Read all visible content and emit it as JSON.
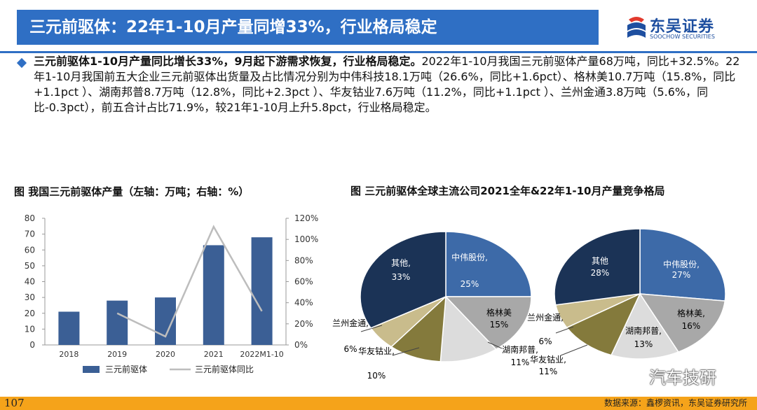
{
  "header": {
    "title": "三元前驱体：22年1-10月产量同增33%，行业格局稳定",
    "brand_name": "东吴证券",
    "brand_en": "SOOCHOW SECURITIES"
  },
  "summary": {
    "lead": "三元前驱体1-10月产量同比增长33%，9月起下游需求恢复，行业格局稳定。",
    "body": "2022年1-10月我国三元前驱体产量68万吨，同比+32.5%。22年1-10月我国前五大企业三元前驱体出货量及占比情况分别为中伟科技18.1万吨（26.6%，同比+1.6pct）、格林美10.7万吨（15.8%，同比+1.1pct ）、湖南邦普8.7万吨（12.8%，同比+2.3pct ）、华友钴业7.6万吨（11.2%，同比+1.1pct ）、兰州金通3.8万吨（5.6%，同比-0.3pct），前五合计占比71.9%，较21年1-10月上升5.8pct，行业格局稳定。"
  },
  "colors": {
    "title_bg": "#2f6fc4",
    "bar": "#3b5f95",
    "line": "#bdbdbd",
    "footer": "#f5a31a"
  },
  "chart_data": [
    {
      "type": "bar",
      "title": "图 我国三元前驱体产量（左轴：万吨；右轴：%）",
      "categories": [
        "2018",
        "2019",
        "2020",
        "2021",
        "2022M1-10"
      ],
      "series": [
        {
          "name": "三元前驱体",
          "type": "bar",
          "axis": "left",
          "values": [
            21,
            28,
            30,
            63,
            68
          ]
        },
        {
          "name": "三元前驱体同比",
          "type": "line",
          "axis": "right",
          "values": [
            null,
            30,
            8,
            112,
            32
          ]
        }
      ],
      "left_axis": {
        "min": 0,
        "max": 80,
        "ticks": [
          "0",
          "10",
          "20",
          "30",
          "40",
          "50",
          "60",
          "70",
          "80"
        ]
      },
      "right_axis": {
        "min": 0,
        "max": 120,
        "ticks": [
          "0%",
          "20%",
          "40%",
          "60%",
          "80%",
          "100%",
          "120%"
        ]
      },
      "legend_position": "bottom",
      "grid": false
    },
    {
      "type": "pie",
      "title": "图 三元前驱体全球主流公司2021全年&22年1-10月产量竞争格局",
      "pies": [
        {
          "slices": [
            {
              "label": "中伟股份,",
              "value": 25,
              "display": "25%",
              "color": "#3d6aa8"
            },
            {
              "label": "格林美",
              "value": 15,
              "display": "15%",
              "color": "#a8a8a8"
            },
            {
              "label": "湖南邦普,",
              "value": 11,
              "display": "11%",
              "color": "#dcdcdc"
            },
            {
              "label": "华友钴业,",
              "value": 10,
              "display": "10%",
              "color": "#847a3c"
            },
            {
              "label": "兰州金通,",
              "value": 6,
              "display": "6%",
              "color": "#c9bc8c"
            },
            {
              "label": "其他,",
              "value": 33,
              "display": "33%",
              "color": "#1b3356"
            }
          ]
        },
        {
          "slices": [
            {
              "label": "中伟股份,",
              "value": 27,
              "display": "27%",
              "color": "#3d6aa8"
            },
            {
              "label": "格林美,",
              "value": 16,
              "display": "16%",
              "color": "#a8a8a8"
            },
            {
              "label": "湖南邦普,",
              "value": 13,
              "display": "13%",
              "color": "#dcdcdc"
            },
            {
              "label": "华友钴业,",
              "value": 11,
              "display": "11%",
              "color": "#847a3c"
            },
            {
              "label": "兰州金通,",
              "value": 6,
              "display": "6%",
              "color": "#c9bc8c"
            },
            {
              "label": "其他",
              "value": 28,
              "display": "28%",
              "color": "#1b3356"
            }
          ]
        }
      ]
    }
  ],
  "footer": {
    "page_number": "107",
    "source": "数据来源：鑫椤资讯，东吴证券研究所"
  },
  "watermark": {
    "text": "汽车技研",
    "icon": "wechat-icon"
  }
}
